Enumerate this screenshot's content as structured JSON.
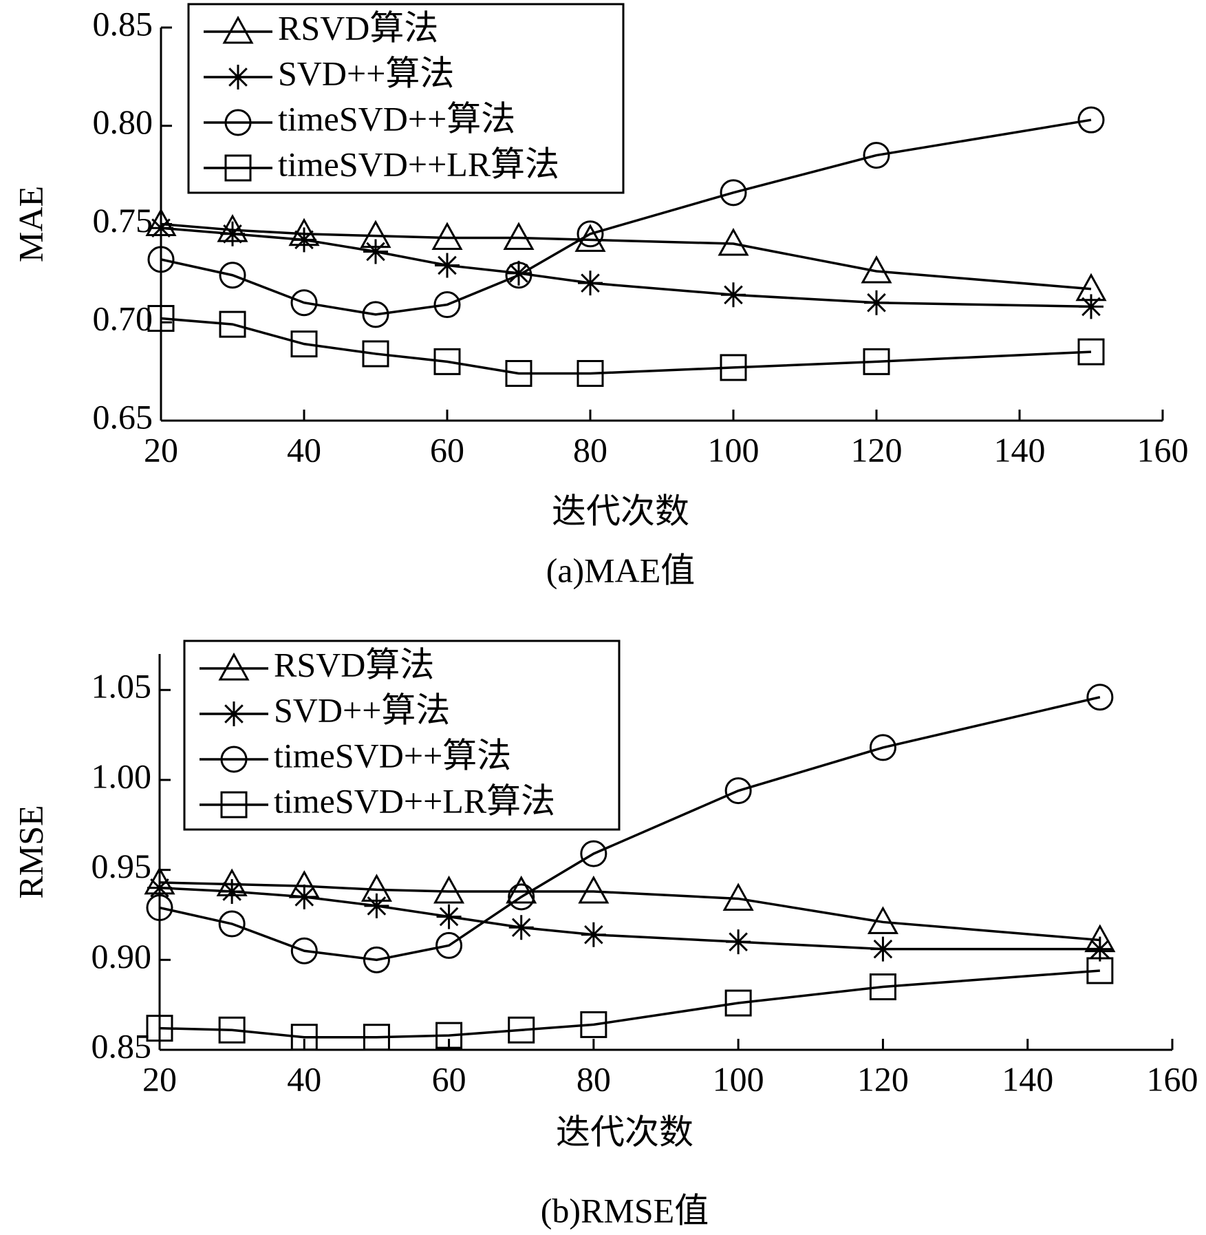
{
  "chart_data": [
    {
      "type": "line",
      "y_label": "MAE",
      "x_label": "迭代次数",
      "caption": "(a)MAE值",
      "x": [
        20,
        30,
        40,
        50,
        60,
        70,
        80,
        100,
        120,
        150
      ],
      "xlim": [
        20,
        160
      ],
      "xticks": [
        20,
        40,
        60,
        80,
        100,
        120,
        140,
        160
      ],
      "ylim": [
        0.65,
        0.85
      ],
      "yticks": [
        0.65,
        {
          "value": 0.7,
          "label": "0.70"
        },
        0.75,
        {
          "value": 0.8,
          "label": "0.80"
        },
        0.85
      ],
      "legend": "upper left",
      "series": [
        {
          "name": "RSVD算法",
          "color": "#000000",
          "marker": "triangle",
          "values": [
            0.75,
            0.747,
            0.745,
            0.744,
            0.743,
            0.743,
            0.742,
            0.74,
            0.726,
            0.717
          ]
        },
        {
          "name": "SVD++算法",
          "color": "#000000",
          "marker": "star",
          "values": [
            0.748,
            0.745,
            0.742,
            0.736,
            0.729,
            0.725,
            0.72,
            0.714,
            0.71,
            0.708
          ]
        },
        {
          "name": "timeSVD++算法",
          "color": "#000000",
          "marker": "circle",
          "values": [
            0.732,
            0.724,
            0.71,
            0.704,
            0.709,
            0.724,
            0.745,
            0.766,
            0.785,
            0.803
          ]
        },
        {
          "name": "timeSVD++LR算法",
          "color": "#000000",
          "marker": "square",
          "values": [
            0.702,
            0.699,
            0.689,
            0.684,
            0.68,
            0.674,
            0.674,
            0.677,
            0.68,
            0.685
          ]
        }
      ]
    },
    {
      "type": "line",
      "y_label": "RMSE",
      "x_label": "迭代次数",
      "caption": "(b)RMSE值",
      "x": [
        20,
        30,
        40,
        50,
        60,
        70,
        80,
        100,
        120,
        150
      ],
      "xlim": [
        20,
        160
      ],
      "xticks": [
        20,
        40,
        60,
        80,
        100,
        120,
        140,
        160
      ],
      "ylim": [
        0.85,
        1.07
      ],
      "yticks": [
        0.85,
        {
          "value": 0.9,
          "label": "0.90"
        },
        0.95,
        {
          "value": 1.0,
          "label": "1.00"
        },
        1.05
      ],
      "legend": "upper left",
      "series": [
        {
          "name": "RSVD算法",
          "color": "#000000",
          "marker": "triangle",
          "values": [
            0.943,
            0.942,
            0.941,
            0.939,
            0.938,
            0.938,
            0.938,
            0.934,
            0.921,
            0.911
          ]
        },
        {
          "name": "SVD++算法",
          "color": "#000000",
          "marker": "star",
          "values": [
            0.94,
            0.938,
            0.935,
            0.93,
            0.924,
            0.918,
            0.914,
            0.91,
            0.906,
            0.906
          ]
        },
        {
          "name": "timeSVD++算法",
          "color": "#000000",
          "marker": "circle",
          "values": [
            0.929,
            0.92,
            0.905,
            0.9,
            0.908,
            0.935,
            0.959,
            0.994,
            1.018,
            1.046
          ]
        },
        {
          "name": "timeSVD++LR算法",
          "color": "#000000",
          "marker": "square",
          "values": [
            0.862,
            0.861,
            0.857,
            0.857,
            0.858,
            0.861,
            0.864,
            0.876,
            0.885,
            0.894
          ]
        }
      ]
    }
  ]
}
